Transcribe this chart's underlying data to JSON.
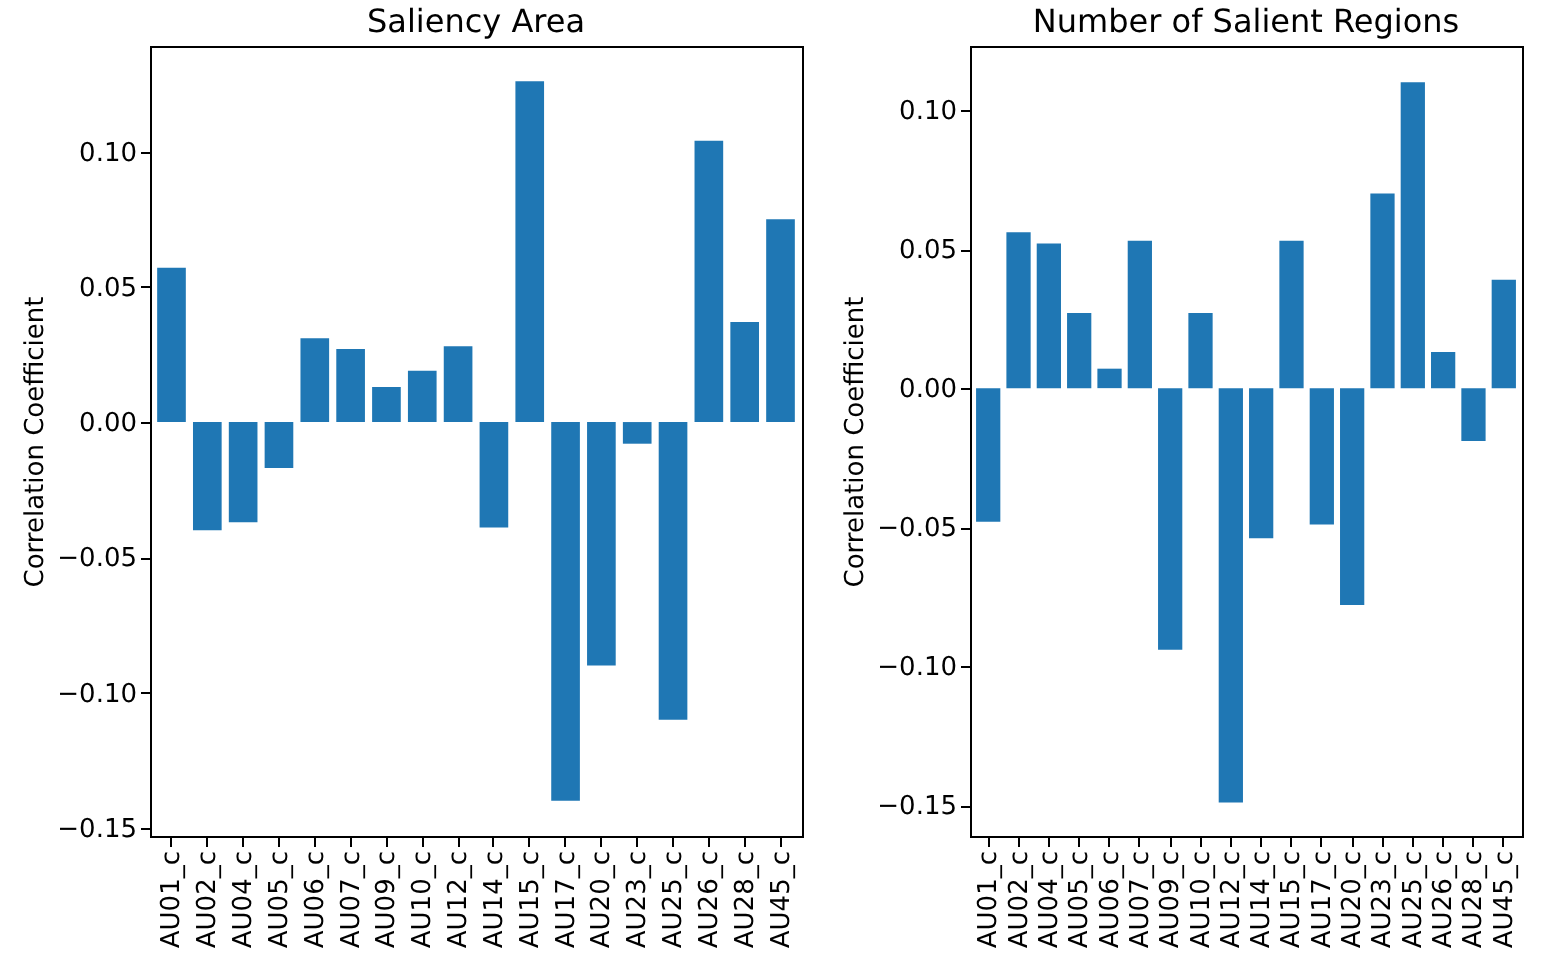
{
  "chart_data": [
    {
      "type": "bar",
      "title": "Saliency Area",
      "ylabel": "Correlation Coefficient",
      "categories": [
        "AU01_c",
        "AU02_c",
        "AU04_c",
        "AU05_c",
        "AU06_c",
        "AU07_c",
        "AU09_c",
        "AU10_c",
        "AU12_c",
        "AU14_c",
        "AU15_c",
        "AU17_c",
        "AU20_c",
        "AU23_c",
        "AU25_c",
        "AU26_c",
        "AU28_c",
        "AU45_c"
      ],
      "series": [
        {
          "color": "#1f77b4",
          "values": [
            0.057,
            -0.04,
            -0.037,
            -0.017,
            0.031,
            0.027,
            0.013,
            0.019,
            0.028,
            -0.039,
            0.126,
            -0.14,
            -0.09,
            -0.008,
            -0.11,
            0.104,
            0.037,
            0.075
          ]
        }
      ],
      "ylim": [
        -0.153,
        0.139
      ],
      "yticks": [
        {
          "value": -0.15,
          "label": "−0.15"
        },
        {
          "value": -0.1,
          "label": "−0.10"
        },
        {
          "value": -0.05,
          "label": "−0.05"
        },
        {
          "value": 0,
          "label": "0.00"
        },
        {
          "value": 0.05,
          "label": "0.05"
        },
        {
          "value": 0.1,
          "label": "0.10"
        }
      ],
      "grid": false,
      "legend": false
    },
    {
      "type": "bar",
      "title": "Number of Salient Regions",
      "ylabel": "Correlation Coefficient",
      "categories": [
        "AU01_c",
        "AU02_c",
        "AU04_c",
        "AU05_c",
        "AU06_c",
        "AU07_c",
        "AU09_c",
        "AU10_c",
        "AU12_c",
        "AU14_c",
        "AU15_c",
        "AU17_c",
        "AU20_c",
        "AU23_c",
        "AU25_c",
        "AU26_c",
        "AU28_c",
        "AU45_c"
      ],
      "series": [
        {
          "color": "#1f77b4",
          "values": [
            -0.048,
            0.056,
            0.052,
            0.027,
            0.007,
            0.053,
            -0.094,
            0.027,
            -0.149,
            -0.054,
            0.053,
            -0.049,
            -0.078,
            0.07,
            0.11,
            0.013,
            -0.019,
            0.039
          ]
        }
      ],
      "ylim": [
        -0.161,
        0.123
      ],
      "yticks": [
        {
          "value": -0.15,
          "label": "−0.15"
        },
        {
          "value": -0.1,
          "label": "−0.10"
        },
        {
          "value": -0.05,
          "label": "−0.05"
        },
        {
          "value": 0,
          "label": "0.00"
        },
        {
          "value": 0.05,
          "label": "0.05"
        },
        {
          "value": 0.1,
          "label": "0.10"
        }
      ],
      "grid": false,
      "legend": false
    }
  ]
}
